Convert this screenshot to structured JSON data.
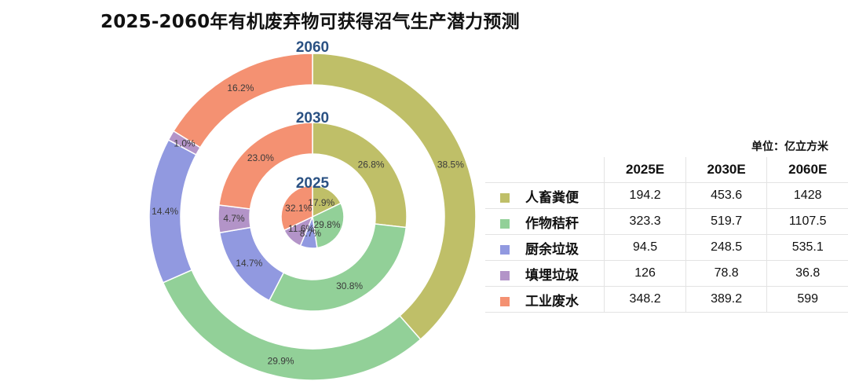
{
  "title": "2025-2060年有机废弃物可获得沼气生产潜力预测",
  "unit": "单位：亿立方米",
  "chart_data": {
    "type": "pie",
    "subtype": "nested-donut",
    "categories": [
      "人畜粪便",
      "作物秸秆",
      "厨余垃圾",
      "填埋垃圾",
      "工业废水"
    ],
    "colors": [
      "#bfbf68",
      "#92d098",
      "#9199e0",
      "#b394c8",
      "#f49172"
    ],
    "rings": [
      {
        "name": "2025",
        "label": "2025",
        "percent_labels": [
          "17.9%",
          "29.8%",
          "8.7%",
          "11.6%",
          "32.1%"
        ]
      },
      {
        "name": "2030",
        "label": "2030",
        "percent_labels": [
          "26.8%",
          "30.8%",
          "14.7%",
          "4.7%",
          "23.0%"
        ]
      },
      {
        "name": "2060",
        "label": "2060",
        "percent_labels": [
          "38.5%",
          "29.9%",
          "14.4%",
          "1.0%",
          "16.2%"
        ]
      }
    ],
    "table": {
      "columns": [
        "2025E",
        "2030E",
        "2060E"
      ],
      "rows": [
        {
          "category": "人畜粪便",
          "values": [
            "194.2",
            "453.6",
            "1428"
          ]
        },
        {
          "category": "作物秸秆",
          "values": [
            "323.3",
            "519.7",
            "1107.5"
          ]
        },
        {
          "category": "厨余垃圾",
          "values": [
            "94.5",
            "248.5",
            "535.1"
          ]
        },
        {
          "category": "填埋垃圾",
          "values": [
            "126",
            "78.8",
            "36.8"
          ]
        },
        {
          "category": "工业废水",
          "values": [
            "348.2",
            "389.2",
            "599"
          ]
        }
      ]
    }
  }
}
